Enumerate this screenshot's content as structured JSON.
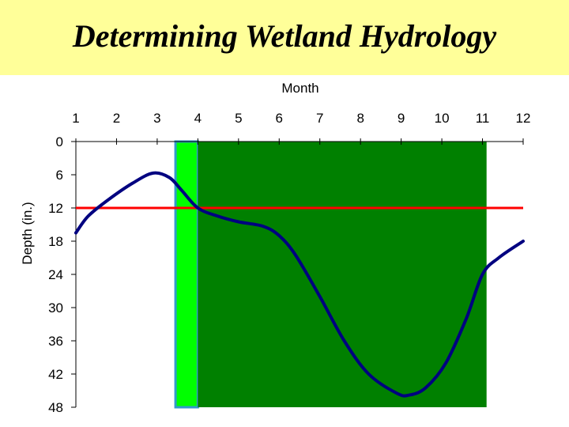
{
  "slide": {
    "title": "Determining Wetland Hydrology"
  },
  "chart_data": {
    "type": "line",
    "xlabel": "Month",
    "ylabel": "Depth (in.)",
    "x_ticks": [
      1,
      2,
      3,
      4,
      5,
      6,
      7,
      8,
      9,
      10,
      11,
      12
    ],
    "y_ticks": [
      0,
      6,
      12,
      18,
      24,
      30,
      36,
      42,
      48
    ],
    "xlim": [
      1,
      12
    ],
    "ylim": [
      0,
      48
    ],
    "y_inverted": true,
    "x_axis_position": "top",
    "grid": false,
    "series": [
      {
        "color": "#000080",
        "points": [
          [
            0.8,
            16.5
          ],
          [
            1.3,
            13.5
          ],
          [
            1.8,
            10.5
          ],
          [
            2.4,
            7.5
          ],
          [
            2.9,
            5.7
          ],
          [
            3.3,
            6.5
          ],
          [
            3.6,
            8.8
          ],
          [
            4.0,
            12.0
          ],
          [
            4.5,
            13.5
          ],
          [
            5.0,
            14.5
          ],
          [
            5.6,
            15.3
          ],
          [
            6.0,
            17.0
          ],
          [
            6.4,
            20.5
          ],
          [
            7.0,
            28.0
          ],
          [
            7.6,
            36.0
          ],
          [
            8.2,
            42.0
          ],
          [
            8.9,
            45.5
          ],
          [
            9.2,
            45.8
          ],
          [
            9.6,
            44.5
          ],
          [
            10.1,
            40.0
          ],
          [
            10.6,
            32.0
          ],
          [
            11.0,
            24.0
          ],
          [
            11.4,
            21.0
          ],
          [
            12.0,
            18.0
          ]
        ]
      }
    ],
    "reference_line": {
      "y": 12,
      "color": "#ff0000"
    },
    "bands": [
      {
        "x_start": 3.45,
        "x_end": 4.0,
        "color": "#00ff00",
        "border": "#3399cc"
      },
      {
        "x_start": 4.0,
        "x_end": 11.1,
        "color": "#008000"
      }
    ]
  }
}
